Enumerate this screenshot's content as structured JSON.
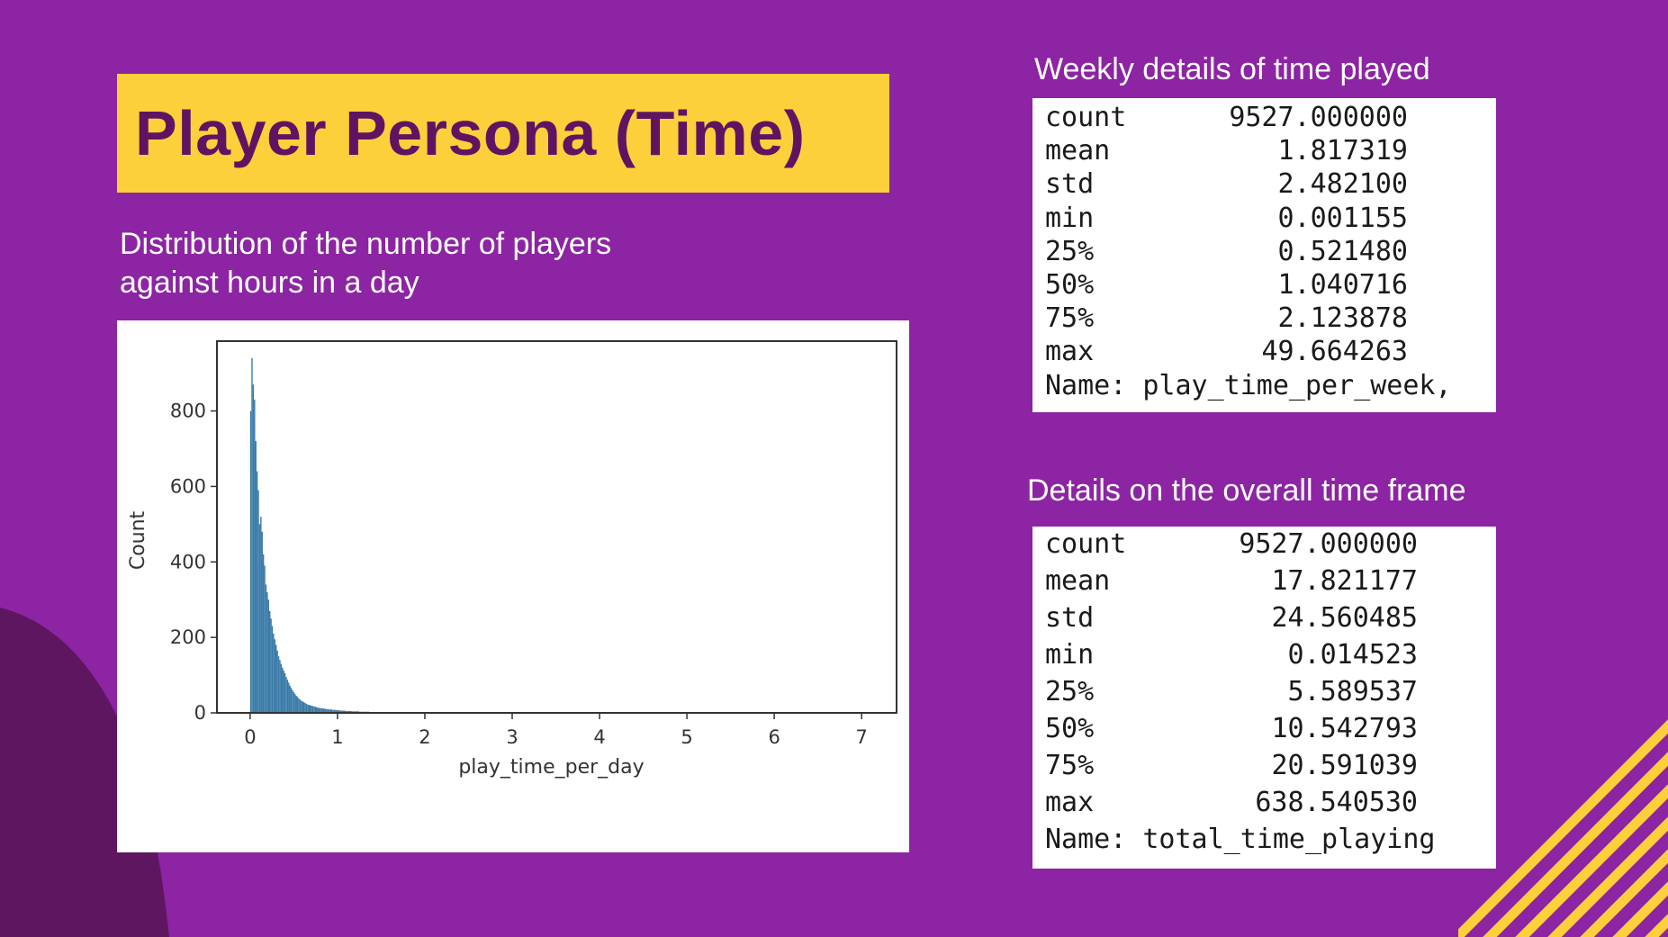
{
  "slide": {
    "title": "Player Persona (Time)",
    "chart_caption_line1": "Distribution of the number of players",
    "chart_caption_line2": "against hours in a day",
    "weekly_caption": "Weekly details of time played",
    "overall_caption": "Details on the overall time frame",
    "colors": {
      "background": "#8c24a3",
      "title_bg": "#fcd03b",
      "title_text": "#5f1462",
      "blob": "#5e1660",
      "stripes": "#fcd03b",
      "bar": "#3a7aa8"
    }
  },
  "weekly_stats": {
    "rows": [
      {
        "key": "count",
        "value": "9527.000000"
      },
      {
        "key": "mean",
        "value": "1.817319"
      },
      {
        "key": "std",
        "value": "2.482100"
      },
      {
        "key": "min",
        "value": "0.001155"
      },
      {
        "key": "25%",
        "value": "0.521480"
      },
      {
        "key": "50%",
        "value": "1.040716"
      },
      {
        "key": "75%",
        "value": "2.123878"
      },
      {
        "key": "max",
        "value": "49.664263"
      }
    ],
    "name_line": "Name: play_time_per_week,"
  },
  "overall_stats": {
    "rows": [
      {
        "key": "count",
        "value": "9527.000000"
      },
      {
        "key": "mean",
        "value": "17.821177"
      },
      {
        "key": "std",
        "value": "24.560485"
      },
      {
        "key": "min",
        "value": "0.014523"
      },
      {
        "key": "25%",
        "value": "5.589537"
      },
      {
        "key": "50%",
        "value": "10.542793"
      },
      {
        "key": "75%",
        "value": "20.591039"
      },
      {
        "key": "max",
        "value": "638.540530"
      }
    ],
    "name_line": "Name: total_time_playing"
  },
  "chart_data": {
    "type": "bar",
    "title": "",
    "xlabel": "play_time_per_day",
    "ylabel": "Count",
    "xlim": [
      -0.38,
      7.4
    ],
    "ylim": [
      0,
      985
    ],
    "xticks": [
      0,
      1,
      2,
      3,
      4,
      5,
      6,
      7
    ],
    "yticks": [
      0,
      200,
      400,
      600,
      800
    ],
    "grid": false,
    "bin_start": 0.0,
    "bin_width": 0.0145,
    "counts": [
      800,
      940,
      870,
      830,
      720,
      640,
      590,
      500,
      520,
      480,
      420,
      390,
      340,
      320,
      300,
      270,
      250,
      230,
      210,
      195,
      180,
      165,
      150,
      140,
      130,
      120,
      112,
      105,
      95,
      88,
      80,
      72,
      66,
      60,
      55,
      50,
      45,
      42,
      38,
      35,
      32,
      30,
      28,
      26,
      24,
      22,
      21,
      20,
      19,
      18,
      17,
      16,
      15,
      14,
      13,
      13,
      12,
      12,
      11,
      11,
      10,
      10,
      9,
      9,
      9,
      8,
      8,
      8,
      7,
      7,
      7,
      6,
      6,
      6,
      6,
      5,
      5,
      5,
      5,
      5,
      4,
      4,
      4,
      4,
      4,
      4,
      3,
      3,
      3,
      3,
      3,
      3,
      3,
      3,
      2,
      2,
      2,
      2,
      2,
      2,
      2,
      2,
      2,
      2,
      2,
      2,
      1,
      1,
      1,
      1,
      1,
      1,
      1,
      1,
      1,
      1,
      1,
      1,
      1,
      1,
      1,
      1,
      1,
      1,
      1,
      1,
      1,
      1,
      1,
      1,
      1,
      1,
      1,
      1,
      1,
      1,
      1,
      1,
      1,
      1,
      1,
      1,
      1,
      1,
      1,
      1,
      1,
      1,
      1,
      1,
      1,
      1,
      1,
      1,
      1,
      1,
      1,
      1,
      1,
      1,
      1,
      1,
      1,
      1,
      1,
      1,
      1,
      1,
      1,
      1,
      1,
      1,
      1,
      1,
      1,
      1,
      1,
      1,
      1,
      1,
      1,
      1,
      1,
      1,
      1,
      1,
      1,
      1,
      1,
      1,
      1,
      1,
      1,
      1,
      1,
      1,
      1,
      1,
      1,
      1,
      1,
      0,
      0,
      0,
      1,
      0,
      1,
      0,
      0,
      1,
      0,
      0,
      0,
      0,
      0,
      0,
      0,
      0,
      0,
      0,
      0,
      0,
      0,
      0,
      0,
      0,
      0,
      0,
      0,
      0,
      0,
      0,
      0,
      0,
      0,
      0,
      0,
      0,
      0,
      0,
      0,
      0,
      0,
      0,
      0,
      0,
      0,
      0,
      0,
      0,
      0,
      0,
      0,
      0,
      0,
      0,
      0,
      0,
      0,
      0,
      0,
      0,
      0,
      0,
      0,
      0,
      0,
      0,
      0,
      0,
      0,
      0,
      0,
      0,
      0,
      0,
      0,
      0,
      0,
      1,
      0,
      0,
      0,
      0,
      0,
      0,
      0,
      0,
      0,
      0
    ]
  }
}
